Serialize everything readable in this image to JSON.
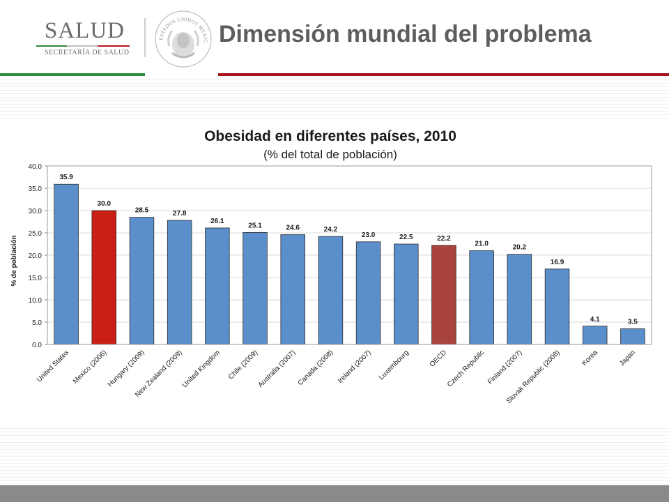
{
  "header": {
    "logo_text": "SALUD",
    "logo_subtitle": "SECRETARÍA DE SALUD",
    "seal_text": "ESTADOS UNIDOS MEXICANOS",
    "slide_title": "Dimensión mundial del problema"
  },
  "colors": {
    "bar_default": "#5b8fcb",
    "bar_mexico": "#c91f16",
    "bar_oecd": "#a8443d",
    "green_rule": "#2e8b3d",
    "red_rule": "#a8121b",
    "title_gray": "#5d5d5d"
  },
  "chart_data": {
    "type": "bar",
    "title": "Obesidad en diferentes países, 2010",
    "subtitle": "(% del total de población)",
    "xlabel": "",
    "ylabel": "% de población",
    "ylim": [
      0,
      40
    ],
    "yticks": [
      "0.0",
      "5.0",
      "10.0",
      "15.0",
      "20.0",
      "25.0",
      "30.0",
      "35.0",
      "40.0"
    ],
    "grid": true,
    "legend": "none",
    "categories": [
      "United States",
      "Mexico (2006)",
      "Hungary (2009)",
      "New Zealand (2009)",
      "United Kingdom",
      "Chile (2009)",
      "Australia (2007)",
      "Canada (2008)",
      "Ireland (2007)",
      "Luxembourg",
      "OECD",
      "Czech Republic",
      "Finland (2007)",
      "Slovak Republic (2008)",
      "Korea",
      "Japan"
    ],
    "values": [
      35.9,
      30.0,
      28.5,
      27.8,
      26.1,
      25.1,
      24.6,
      24.2,
      23.0,
      22.5,
      22.2,
      21.0,
      20.2,
      16.9,
      4.1,
      3.5
    ],
    "value_labels": [
      "35.9",
      "30.0",
      "28.5",
      "27.8",
      "26.1",
      "25.1",
      "24.6",
      "24.2",
      "23.0",
      "22.5",
      "22.2",
      "21.0",
      "20.2",
      "16.9",
      "4.1",
      "3.5"
    ],
    "highlight": {
      "Mexico (2006)": "#c91f16",
      "OECD": "#a8443d"
    }
  }
}
